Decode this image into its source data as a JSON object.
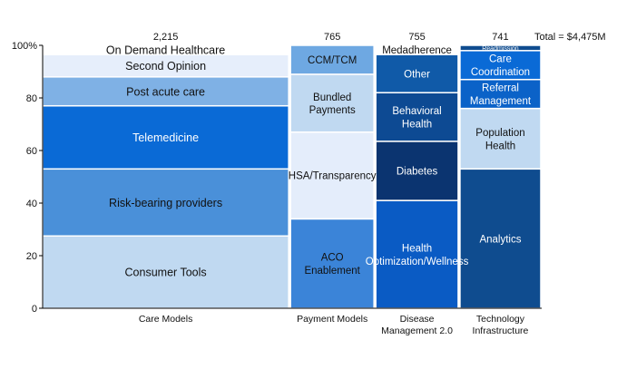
{
  "chart_data": {
    "type": "marimekko",
    "total_label": "Total = $4,475M",
    "ylim": [
      0,
      100
    ],
    "y_ticks": [
      0,
      20,
      40,
      60,
      80,
      100
    ],
    "y_tick_labels": [
      "0",
      "20",
      "40",
      "60",
      "80",
      "100%"
    ],
    "categories": [
      {
        "name": "Care Models",
        "total": 2215,
        "total_label": "2,215",
        "segments": [
          {
            "label": "Consumer Tools",
            "value": 27.5,
            "color": "#c0d9f1",
            "text_color": "#111111"
          },
          {
            "label": "Risk-bearing providers",
            "value": 25.5,
            "color": "#4a90d9",
            "text_color": "#111111"
          },
          {
            "label": "Telemedicine",
            "value": 24,
            "color": "#0a6ad6",
            "text_color": "#ffffff"
          },
          {
            "label": "Post acute care",
            "value": 11,
            "color": "#7fb1e5",
            "text_color": "#111111"
          },
          {
            "label": "Second Opinion",
            "value": 8.5,
            "color": "#e6eefb",
            "text_color": "#111111"
          },
          {
            "label": "On Demand Healthcare",
            "value": 3.5,
            "color": "#ffffff",
            "text_color": "#111111"
          }
        ]
      },
      {
        "name": "Payment Models",
        "total": 765,
        "total_label": "765",
        "segments": [
          {
            "label": "ACO Enablement",
            "value": 34,
            "color": "#3b84d8",
            "text_color": "#111111"
          },
          {
            "label": "HSA/Transparency",
            "value": 33,
            "color": "#e4edfb",
            "text_color": "#111111"
          },
          {
            "label": "Bundled Payments",
            "value": 22,
            "color": "#c0d9f1",
            "text_color": "#111111"
          },
          {
            "label": "CCM/TCM",
            "value": 11,
            "color": "#6ea8e2",
            "text_color": "#111111"
          }
        ]
      },
      {
        "name": "Disease Management 2.0",
        "total": 755,
        "total_label": "755",
        "segments": [
          {
            "label": "Health Optimization/Wellness",
            "value": 41,
            "color": "#0a5bc4",
            "text_color": "#ffffff"
          },
          {
            "label": "Diabetes",
            "value": 22.5,
            "color": "#0b3470",
            "text_color": "#ffffff"
          },
          {
            "label": "Behavioral Health",
            "value": 18.5,
            "color": "#0d4a93",
            "text_color": "#ffffff"
          },
          {
            "label": "Other",
            "value": 14.5,
            "color": "#105aa8",
            "text_color": "#ffffff"
          },
          {
            "label": "Medadherence",
            "value": 3.5,
            "color": "#ffffff",
            "text_color": "#111111"
          }
        ]
      },
      {
        "name": "Technology Infrastructure",
        "total": 741,
        "total_label": "741",
        "segments": [
          {
            "label": "Analytics",
            "value": 53,
            "color": "#0f4c8f",
            "text_color": "#ffffff"
          },
          {
            "label": "Population Health",
            "value": 23,
            "color": "#c0d9f1",
            "text_color": "#111111"
          },
          {
            "label": "Referral Management",
            "value": 11,
            "color": "#0b62c8",
            "text_color": "#ffffff"
          },
          {
            "label": "Care Coordination",
            "value": 11,
            "color": "#0a6ad6",
            "text_color": "#ffffff"
          },
          {
            "label": "Readmission",
            "value": 2,
            "color": "#0f4c8f",
            "text_color": "#ffffff"
          }
        ]
      }
    ],
    "x_labels": [
      [
        "Care Models"
      ],
      [
        "Payment Models"
      ],
      [
        "Disease",
        "Management 2.0"
      ],
      [
        "Technology",
        "Infrastructure"
      ]
    ],
    "segment_label_lines": {
      "Care Models": {
        "Consumer Tools": [
          "Consumer Tools"
        ],
        "Risk-bearing providers": [
          "Risk-bearing providers"
        ],
        "Telemedicine": [
          "Telemedicine"
        ],
        "Post acute care": [
          "Post acute care"
        ],
        "Second Opinion": [
          "Second Opinion"
        ],
        "On Demand Healthcare": [
          "On Demand Healthcare"
        ]
      },
      "Payment Models": {
        "ACO Enablement": [
          "ACO",
          "Enablement"
        ],
        "HSA/Transparency": [
          "HSA/Transparency"
        ],
        "Bundled Payments": [
          "Bundled",
          "Payments"
        ],
        "CCM/TCM": [
          "CCM/TCM"
        ]
      },
      "Disease Management 2.0": {
        "Health Optimization/Wellness": [
          "Health",
          "Optimization/Wellness"
        ],
        "Diabetes": [
          "Diabetes"
        ],
        "Behavioral Health": [
          "Behavioral",
          "Health"
        ],
        "Other": [
          "Other"
        ],
        "Medadherence": [
          "Medadherence"
        ]
      },
      "Technology Infrastructure": {
        "Analytics": [
          "Analytics"
        ],
        "Population Health": [
          "Population",
          "Health"
        ],
        "Referral Management": [
          "Referral",
          "Management"
        ],
        "Care Coordination": [
          "Care",
          "Coordination"
        ],
        "Readmission": [
          "Readmission"
        ]
      }
    }
  }
}
